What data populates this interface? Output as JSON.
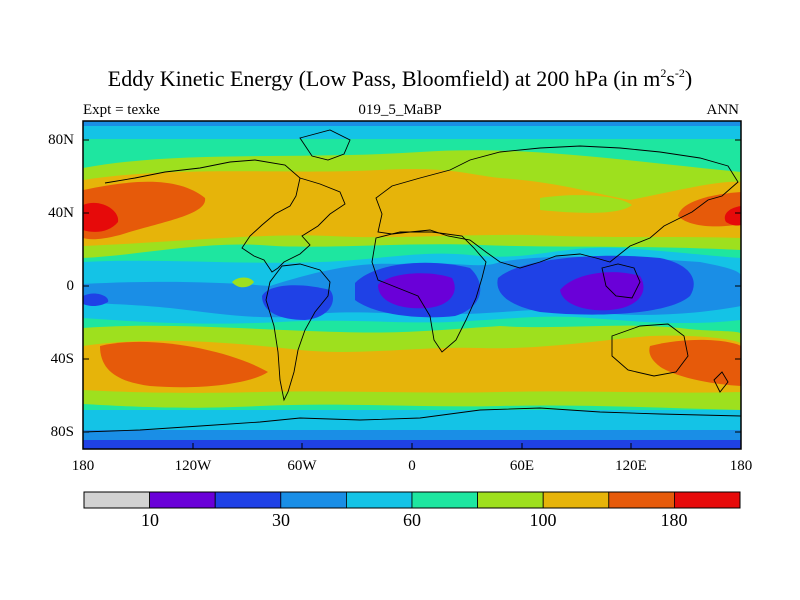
{
  "title_parts": {
    "text": "Eddy Kinetic Energy (Low Pass, Bloomfield) at 200 hPa (in m",
    "exp1": "2",
    "mid": "s",
    "exp2": "-2",
    "close": ")"
  },
  "subtitle_left": "Expt = texke",
  "subtitle_center": "019_5_MaBP",
  "subtitle_right": "ANN",
  "y_axis_labels": [
    "80N",
    "40N",
    "0",
    "40S",
    "80S"
  ],
  "x_axis_labels": [
    "180",
    "120W",
    "60W",
    "0",
    "60E",
    "120E",
    "180"
  ],
  "colorbar": {
    "colors": [
      "#d2d2d2",
      "#6a00d8",
      "#1f41e6",
      "#1a8ee6",
      "#14c3e6",
      "#1ee6a0",
      "#9ee01e",
      "#e6b40a",
      "#e65a0a",
      "#e60a0a"
    ],
    "labels": [
      "10",
      "30",
      "60",
      "100",
      "180"
    ]
  },
  "palette": {
    "purple": "#6a00d8",
    "blue": "#1f41e6",
    "mid_blue": "#1a8ee6",
    "light_blue": "#14c3e6",
    "teal": "#1ee6a0",
    "lime": "#9ee01e",
    "yellow": "#e6b40a",
    "orange": "#e65a0a",
    "red": "#e60a0a",
    "frame": "#000000",
    "coast": "#000000"
  }
}
